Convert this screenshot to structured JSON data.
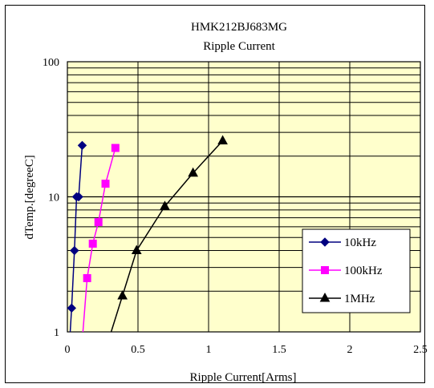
{
  "chart_data": {
    "type": "line",
    "title": "HMK212BJ683MG",
    "subtitle": "Ripple Current",
    "xlabel": "Ripple Current[Arms]",
    "ylabel": "dTemp.[degreeC]",
    "xlim": [
      0,
      2.5
    ],
    "ylim": [
      1,
      100
    ],
    "y_scale": "log",
    "x_ticks": [
      "0",
      "0.5",
      "1",
      "1.5",
      "2",
      "2.5"
    ],
    "y_ticks": [
      "1",
      "10",
      "100"
    ],
    "grid": true,
    "legend_position": "bottom-right",
    "plot_background": "#ffffcc",
    "series": [
      {
        "name": "10kHz",
        "color": "#000080",
        "marker": "diamond",
        "x": [
          0.02,
          0.03,
          0.05,
          0.065,
          0.08,
          0.105
        ],
        "y": [
          1.0,
          1.5,
          4.0,
          10.0,
          10.0,
          24.0
        ]
      },
      {
        "name": "100kHz",
        "color": "#ff00ff",
        "marker": "square",
        "x": [
          0.11,
          0.14,
          0.18,
          0.22,
          0.27,
          0.34
        ],
        "y": [
          1.0,
          2.5,
          4.5,
          6.5,
          12.5,
          23.0
        ]
      },
      {
        "name": "1MHz",
        "color": "#000000",
        "marker": "triangle",
        "x": [
          0.31,
          0.39,
          0.49,
          0.69,
          0.89,
          1.1
        ],
        "y": [
          1.0,
          1.85,
          4.0,
          8.5,
          15.0,
          26.0
        ]
      }
    ]
  }
}
